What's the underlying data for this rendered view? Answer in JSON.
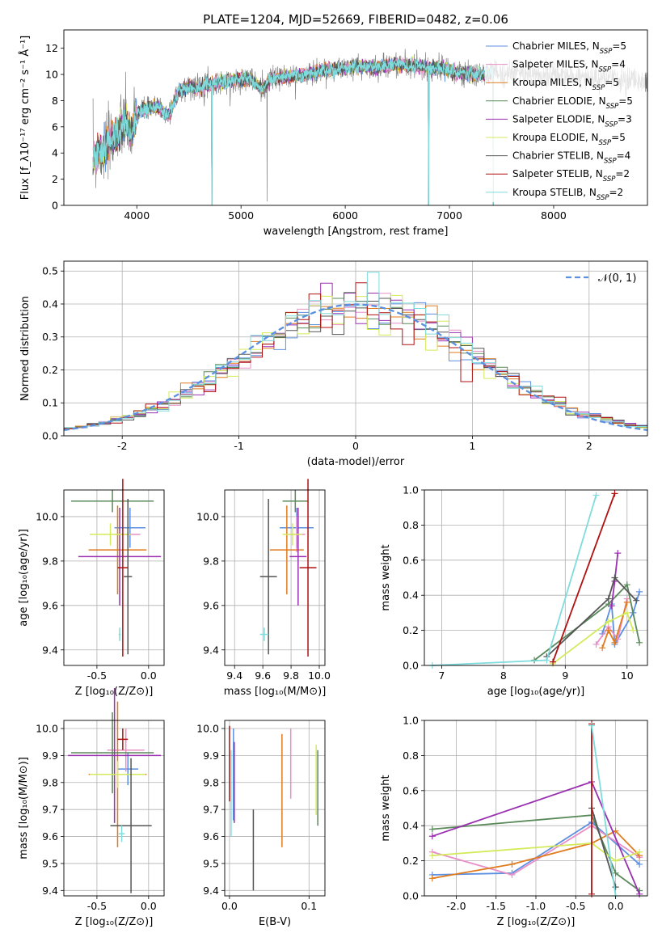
{
  "figure": {
    "title": "PLATE=1204, MJD=52669, FIBERID=0482, z=0.06"
  },
  "series_styles": [
    {
      "name": "Chabrier MILES",
      "nssp": "5",
      "color": "#5b8fe0"
    },
    {
      "name": "Salpeter MILES",
      "nssp": "4",
      "color": "#e88fc7"
    },
    {
      "name": "Kroupa MILES",
      "nssp": "5",
      "color": "#e07b1e"
    },
    {
      "name": "Chabrier ELODIE",
      "nssp": "5",
      "color": "#5a8a5a"
    },
    {
      "name": "Salpeter ELODIE",
      "nssp": "3",
      "color": "#9a30b0"
    },
    {
      "name": "Kroupa ELODIE",
      "nssp": "5",
      "color": "#d4ea5a"
    },
    {
      "name": "Chabrier STELIB",
      "nssp": "4",
      "color": "#555555"
    },
    {
      "name": "Salpeter STELIB",
      "nssp": "2",
      "color": "#b01010"
    },
    {
      "name": "Kroupa STELIB",
      "nssp": "2",
      "color": "#7fdcdc"
    }
  ],
  "chart_data": [
    {
      "id": "spectrum",
      "type": "line",
      "title": "PLATE=1204, MJD=52669, FIBERID=0482, z=0.06",
      "xlabel": "wavelength [Angstrom, rest frame]",
      "ylabel": "Flux [f_λ10⁻¹⁷ erg cm⁻² s⁻¹ Å⁻¹]",
      "xlim": [
        3300,
        8900
      ],
      "ylim": [
        0,
        13.4
      ],
      "xticks": [
        4000,
        5000,
        6000,
        7000,
        8000
      ],
      "yticks": [
        0,
        2,
        4,
        6,
        8,
        10,
        12
      ],
      "legend": "right",
      "continuum": [
        [
          3580,
          3.5
        ],
        [
          3650,
          4.2
        ],
        [
          3720,
          4.4
        ],
        [
          3800,
          5.4
        ],
        [
          3900,
          6.3
        ],
        [
          3950,
          5.2
        ],
        [
          4000,
          7.0
        ],
        [
          4100,
          7.4
        ],
        [
          4200,
          7.6
        ],
        [
          4300,
          6.8
        ],
        [
          4400,
          8.7
        ],
        [
          4500,
          9.1
        ],
        [
          4600,
          9.0
        ],
        [
          4700,
          9.3
        ],
        [
          4800,
          9.4
        ],
        [
          4900,
          9.5
        ],
        [
          5000,
          9.6
        ],
        [
          5100,
          9.6
        ],
        [
          5200,
          8.9
        ],
        [
          5300,
          9.7
        ],
        [
          5400,
          9.8
        ],
        [
          5500,
          9.9
        ],
        [
          5600,
          9.9
        ],
        [
          5700,
          10.2
        ],
        [
          5800,
          10.3
        ],
        [
          5900,
          10.4
        ],
        [
          6000,
          10.5
        ],
        [
          6100,
          10.6
        ],
        [
          6200,
          10.6
        ],
        [
          6300,
          10.5
        ],
        [
          6400,
          10.7
        ],
        [
          6500,
          10.8
        ],
        [
          6600,
          10.7
        ],
        [
          6700,
          10.6
        ],
        [
          6800,
          10.5
        ],
        [
          6900,
          10.5
        ],
        [
          7000,
          10.3
        ],
        [
          7100,
          10.1
        ],
        [
          7200,
          10.0
        ],
        [
          7300,
          10.0
        ],
        [
          7420,
          10.2
        ]
      ],
      "observed_extent": [
        3580,
        8900
      ],
      "dropouts": [
        {
          "x": 4720,
          "y": 0
        },
        {
          "x": 5250,
          "y": 0.3
        },
        {
          "x": 6800,
          "y": 0
        },
        {
          "x": 7420,
          "y": 0
        }
      ],
      "models": [
        "Chabrier MILES, N_SSP=5",
        "Salpeter MILES, N_SSP=4",
        "Kroupa MILES, N_SSP=5",
        "Chabrier ELODIE, N_SSP=5",
        "Salpeter ELODIE, N_SSP=3",
        "Kroupa ELODIE, N_SSP=5",
        "Chabrier STELIB, N_SSP=4",
        "Salpeter STELIB, N_SSP=2",
        "Kroupa STELIB, N_SSP=2"
      ]
    },
    {
      "id": "residuals",
      "type": "bar",
      "xlabel": "(data-model)/error",
      "ylabel": "Normed distribution",
      "xlim": [
        -2.5,
        2.5
      ],
      "ylim": [
        0,
        0.53
      ],
      "xticks": [
        -2,
        -1,
        0,
        1,
        2
      ],
      "yticks": [
        0.0,
        0.1,
        0.2,
        0.3,
        0.4,
        0.5
      ],
      "bin_width": 0.1,
      "legend": [
        {
          "label": "𝒩(0, 1)",
          "style": "dashed",
          "color": "#5b8fe0"
        }
      ],
      "gaussian": {
        "mean": 0,
        "sigma": 1
      }
    },
    {
      "id": "age-vs-Z",
      "type": "scatter",
      "xlabel": "Z [log₁₀(Z/Z⊙)]",
      "ylabel": "age  [log₁₀(age/yr)]",
      "xlim": [
        -0.82,
        0.15
      ],
      "ylim": [
        9.33,
        10.12
      ],
      "xticks": [
        -0.5,
        0.0
      ],
      "yticks": [
        9.4,
        9.6,
        9.8,
        10.0
      ],
      "points": [
        {
          "s": 0,
          "x": -0.18,
          "y": 9.95,
          "xerr": 0.15,
          "yerr": 0.09
        },
        {
          "s": 1,
          "x": -0.2,
          "y": 9.92,
          "xerr": 0.12,
          "yerr": 0.08
        },
        {
          "s": 2,
          "x": -0.3,
          "y": 9.85,
          "xerr": 0.28,
          "yerr": 0.2
        },
        {
          "s": 3,
          "x": -0.35,
          "y": 10.07,
          "xerr": 0.4,
          "yerr": 0.05
        },
        {
          "s": 4,
          "x": -0.28,
          "y": 9.82,
          "xerr": 0.4,
          "yerr": 0.22
        },
        {
          "s": 5,
          "x": -0.37,
          "y": 9.92,
          "xerr": 0.2,
          "yerr": 0.05
        },
        {
          "s": 6,
          "x": -0.2,
          "y": 9.73,
          "xerr": 0.04,
          "yerr": 0.35
        },
        {
          "s": 7,
          "x": -0.25,
          "y": 9.77,
          "xerr": 0.05,
          "yerr": 0.4
        },
        {
          "s": 8,
          "x": -0.28,
          "y": 9.47,
          "xerr": 0.01,
          "yerr": 0.03
        }
      ]
    },
    {
      "id": "age-vs-mass",
      "type": "scatter",
      "xlabel": "mass [log₁₀(M/M⊙)]",
      "ylabel": "",
      "xlim": [
        9.33,
        10.04
      ],
      "ylim": [
        9.33,
        10.12
      ],
      "xticks": [
        9.4,
        9.6,
        9.8,
        10.0
      ],
      "yticks": [
        9.4,
        9.6,
        9.8,
        10.0
      ],
      "points": [
        {
          "s": 0,
          "x": 9.84,
          "y": 9.95,
          "xerr": 0.12,
          "yerr": 0.09
        },
        {
          "s": 1,
          "x": 9.84,
          "y": 9.92,
          "xerr": 0.06,
          "yerr": 0.08
        },
        {
          "s": 2,
          "x": 9.77,
          "y": 9.85,
          "xerr": 0.12,
          "yerr": 0.2
        },
        {
          "s": 3,
          "x": 9.83,
          "y": 10.07,
          "xerr": 0.09,
          "yerr": 0.05
        },
        {
          "s": 4,
          "x": 9.85,
          "y": 9.82,
          "xerr": 0.06,
          "yerr": 0.22
        },
        {
          "s": 5,
          "x": 9.81,
          "y": 9.92,
          "xerr": 0.07,
          "yerr": 0.05
        },
        {
          "s": 6,
          "x": 9.64,
          "y": 9.73,
          "xerr": 0.06,
          "yerr": 0.35
        },
        {
          "s": 7,
          "x": 9.92,
          "y": 9.77,
          "xerr": 0.06,
          "yerr": 0.4
        },
        {
          "s": 8,
          "x": 9.61,
          "y": 9.47,
          "xerr": 0.03,
          "yerr": 0.03
        }
      ]
    },
    {
      "id": "weight-vs-age",
      "type": "line",
      "xlabel": "age  [log₁₀(age/yr)]",
      "ylabel": "mass weight",
      "xlim": [
        6.72,
        10.33
      ],
      "ylim": [
        0,
        1.0
      ],
      "xticks": [
        7,
        8,
        9,
        10
      ],
      "yticks": [
        0.0,
        0.2,
        0.4,
        0.6,
        0.8,
        1.0
      ],
      "series": [
        {
          "s": 0,
          "points": [
            [
              9.6,
              0.18
            ],
            [
              9.75,
              0.35
            ],
            [
              9.8,
              0.12
            ],
            [
              10.1,
              0.3
            ],
            [
              10.2,
              0.42
            ]
          ]
        },
        {
          "s": 1,
          "points": [
            [
              9.5,
              0.12
            ],
            [
              9.7,
              0.22
            ],
            [
              9.85,
              0.15
            ],
            [
              10.0,
              0.38
            ]
          ]
        },
        {
          "s": 2,
          "points": [
            [
              9.6,
              0.1
            ],
            [
              9.7,
              0.2
            ],
            [
              9.8,
              0.13
            ],
            [
              10.0,
              0.36
            ]
          ]
        },
        {
          "s": 3,
          "points": [
            [
              8.5,
              0.03
            ],
            [
              9.7,
              0.35
            ],
            [
              10.0,
              0.46
            ],
            [
              10.2,
              0.13
            ]
          ]
        },
        {
          "s": 4,
          "points": [
            [
              9.75,
              0.34
            ],
            [
              9.8,
              0.48
            ],
            [
              9.85,
              0.64
            ]
          ]
        },
        {
          "s": 5,
          "points": [
            [
              8.8,
              0.01
            ],
            [
              9.7,
              0.25
            ],
            [
              10.0,
              0.3
            ],
            [
              10.1,
              0.2
            ]
          ]
        },
        {
          "s": 6,
          "points": [
            [
              8.7,
              0.05
            ],
            [
              9.7,
              0.38
            ],
            [
              9.8,
              0.5
            ],
            [
              10.15,
              0.37
            ]
          ]
        },
        {
          "s": 7,
          "points": [
            [
              8.8,
              0.02
            ],
            [
              9.8,
              0.98
            ]
          ]
        },
        {
          "s": 8,
          "points": [
            [
              6.85,
              0.0
            ],
            [
              8.7,
              0.03
            ],
            [
              9.5,
              0.97
            ]
          ]
        }
      ]
    },
    {
      "id": "mass-vs-Z",
      "type": "scatter",
      "xlabel": "Z [log₁₀(Z/Z⊙)]",
      "ylabel": "mass [log₁₀(M/M⊙)]",
      "xlim": [
        -0.82,
        0.15
      ],
      "ylim": [
        9.38,
        10.03
      ],
      "xticks": [
        -0.5,
        0.0
      ],
      "yticks": [
        9.4,
        9.5,
        9.6,
        9.7,
        9.8,
        9.9,
        10.0
      ],
      "points": [
        {
          "s": 0,
          "x": -0.2,
          "y": 9.85,
          "xerr": 0.1,
          "yerr": 0.06
        },
        {
          "s": 1,
          "x": -0.22,
          "y": 9.92,
          "xerr": 0.18,
          "yerr": 0.08
        },
        {
          "s": 2,
          "x": -0.3,
          "y": 9.83,
          "xerr": 0.28,
          "yerr": 0.27
        },
        {
          "s": 3,
          "x": -0.35,
          "y": 9.91,
          "xerr": 0.4,
          "yerr": 0.15
        },
        {
          "s": 4,
          "x": -0.33,
          "y": 9.9,
          "xerr": 0.45,
          "yerr": 0.25
        },
        {
          "s": 5,
          "x": -0.3,
          "y": 9.83,
          "xerr": 0.27,
          "yerr": 0.05
        },
        {
          "s": 6,
          "x": -0.17,
          "y": 9.64,
          "xerr": 0.2,
          "yerr": 0.25
        },
        {
          "s": 7,
          "x": -0.25,
          "y": 9.96,
          "xerr": 0.05,
          "yerr": 0.04
        },
        {
          "s": 8,
          "x": -0.26,
          "y": 9.61,
          "xerr": 0.03,
          "yerr": 0.03
        }
      ]
    },
    {
      "id": "mass-vs-ebv",
      "type": "scatter",
      "xlabel": "E(B-V)",
      "ylabel": "",
      "xlim": [
        -0.006,
        0.12
      ],
      "ylim": [
        9.38,
        10.03
      ],
      "xticks": [
        0.0,
        0.1
      ],
      "yticks": [
        9.4,
        9.5,
        9.6,
        9.7,
        9.8,
        9.9,
        10.0
      ],
      "points": [
        {
          "s": 0,
          "x": 0.005,
          "y": 9.83,
          "yerr": 0.17
        },
        {
          "s": 1,
          "x": 0.077,
          "y": 9.87,
          "yerr": 0.13
        },
        {
          "s": 2,
          "x": 0.066,
          "y": 9.77,
          "yerr": 0.21
        },
        {
          "s": 3,
          "x": 0.111,
          "y": 9.78,
          "yerr": 0.14
        },
        {
          "s": 4,
          "x": 0.006,
          "y": 9.8,
          "yerr": 0.15
        },
        {
          "s": 5,
          "x": 0.109,
          "y": 9.81,
          "yerr": 0.13
        },
        {
          "s": 6,
          "x": 0.03,
          "y": 9.55,
          "yerr": 0.15
        },
        {
          "s": 7,
          "x": 0.0,
          "y": 9.87,
          "yerr": 0.14
        },
        {
          "s": 8,
          "x": 0.002,
          "y": 9.76,
          "yerr": 0.16
        }
      ]
    },
    {
      "id": "weight-vs-Z",
      "type": "line",
      "xlabel": "Z [log₁₀(Z/Z⊙)]",
      "ylabel": "mass weight",
      "xlim": [
        -2.4,
        0.4
      ],
      "ylim": [
        0,
        1.0
      ],
      "xticks": [
        -2.0,
        -1.5,
        -1.0,
        -0.5,
        0.0
      ],
      "yticks": [
        0.0,
        0.2,
        0.4,
        0.6,
        0.8,
        1.0
      ],
      "series": [
        {
          "s": 0,
          "points": [
            [
              -2.3,
              0.12
            ],
            [
              -1.3,
              0.13
            ],
            [
              -0.3,
              0.42
            ],
            [
              0.3,
              0.18
            ]
          ]
        },
        {
          "s": 1,
          "points": [
            [
              -2.3,
              0.25
            ],
            [
              -1.3,
              0.12
            ],
            [
              -0.3,
              0.4
            ],
            [
              0.3,
              0.22
            ]
          ]
        },
        {
          "s": 2,
          "points": [
            [
              -2.3,
              0.1
            ],
            [
              -1.3,
              0.18
            ],
            [
              -0.3,
              0.3
            ],
            [
              0.0,
              0.37
            ],
            [
              0.3,
              0.23
            ]
          ]
        },
        {
          "s": 3,
          "points": [
            [
              -2.3,
              0.38
            ],
            [
              -0.3,
              0.46
            ],
            [
              0.0,
              0.13
            ],
            [
              0.3,
              0.03
            ]
          ]
        },
        {
          "s": 4,
          "points": [
            [
              -2.3,
              0.34
            ],
            [
              -0.3,
              0.65
            ],
            [
              0.3,
              0.01
            ]
          ]
        },
        {
          "s": 5,
          "points": [
            [
              -2.3,
              0.23
            ],
            [
              -0.3,
              0.3
            ],
            [
              0.0,
              0.2
            ],
            [
              0.3,
              0.25
            ]
          ]
        },
        {
          "s": 6,
          "points": [
            [
              -0.3,
              0.5
            ],
            [
              0.0,
              0.05
            ]
          ]
        },
        {
          "s": 7,
          "points": [
            [
              -0.3,
              0.98
            ],
            [
              -0.3,
              0.01
            ]
          ]
        },
        {
          "s": 8,
          "points": [
            [
              -0.3,
              0.97
            ],
            [
              0.0,
              0.0
            ]
          ]
        }
      ]
    }
  ]
}
